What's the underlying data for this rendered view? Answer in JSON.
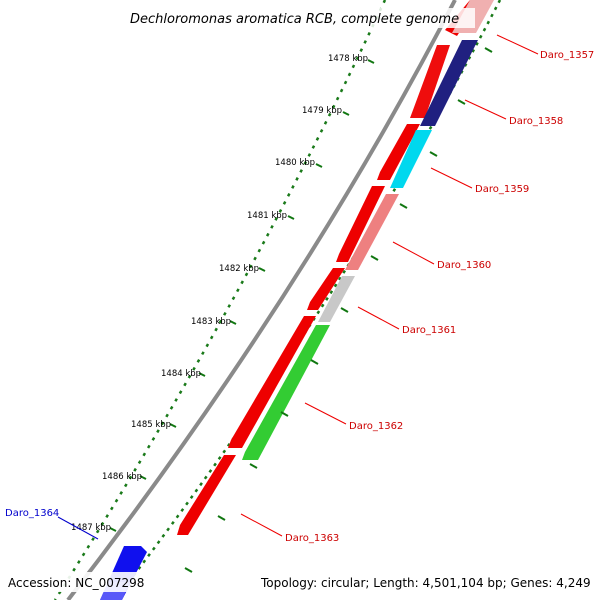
{
  "title": "Dechloromonas aromatica RCB, complete genome",
  "footer": {
    "accession": "Accession: NC_007298",
    "topology": "Topology: circular; Length: 4,501,104 bp; Genes: 4,249"
  },
  "ticks": [
    "1478 kbp",
    "1479 kbp",
    "1480 kbp",
    "1481 kbp",
    "1482 kbp",
    "1483 kbp",
    "1484 kbp",
    "1485 kbp",
    "1486 kbp",
    "1487 kbp"
  ],
  "genes": [
    {
      "label": "Daro_1357",
      "color": "#cc0000"
    },
    {
      "label": "Daro_1358",
      "color": "#cc0000"
    },
    {
      "label": "Daro_1359",
      "color": "#cc0000"
    },
    {
      "label": "Daro_1360",
      "color": "#cc0000"
    },
    {
      "label": "Daro_1361",
      "color": "#cc0000"
    },
    {
      "label": "Daro_1362",
      "color": "#cc0000"
    },
    {
      "label": "Daro_1363",
      "color": "#cc0000"
    },
    {
      "label": "Daro_1364",
      "color": "#0000cc"
    }
  ],
  "colors": {
    "backbone": "#8c8c8c",
    "forward_gene": "#ee0000",
    "reverse_gene": "#1010ee",
    "cog_green": "#33cc33",
    "cog_grey": "#c8c8c8",
    "cog_pink": "#ee8080",
    "cog_cyan": "#00e5ee",
    "cog_navy": "#202080",
    "cog_lightpink": "#f0b0b0",
    "tick_color": "#117711"
  }
}
